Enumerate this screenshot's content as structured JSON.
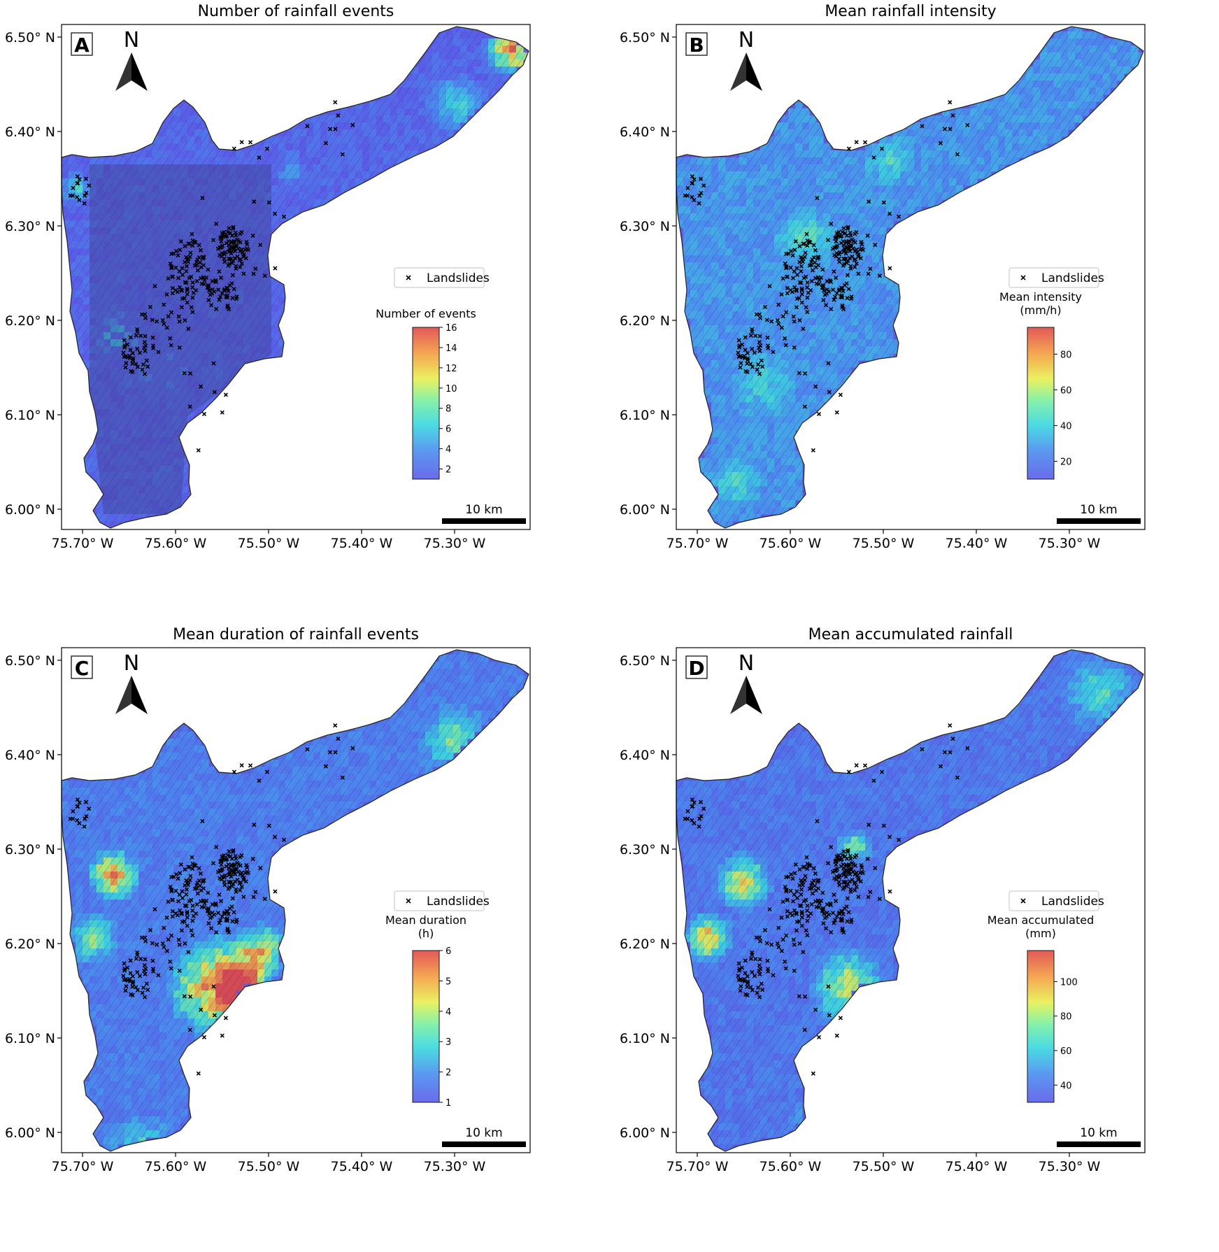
{
  "colors": {
    "basin_fill": "#5b5fdc",
    "hillshade": "#3a3a7a",
    "outline": "#222222",
    "landslide_marker": "#000000"
  },
  "colormap": [
    "#5a5ce8",
    "#4a8cf0",
    "#38d8e0",
    "#7cf0a0",
    "#e8f050",
    "#f4a040",
    "#e04848"
  ],
  "axes": {
    "lat_ticks": [
      "6.50° N",
      "6.40° N",
      "6.30° N",
      "6.20° N",
      "6.10° N",
      "6.00° N"
    ],
    "lon_ticks": [
      "75.70° W",
      "75.60° W",
      "75.50° W",
      "75.40° W",
      "75.30° W"
    ]
  },
  "north_label": "N",
  "legend_label": "Landslides",
  "scale_bar_label": "10 km",
  "panels": [
    {
      "letter": "A",
      "title": "Number of rainfall events",
      "colorbar_title": [
        "Number of events"
      ],
      "colorbar_min": 1,
      "colorbar_max": 16,
      "colorbar_ticks": [
        {
          "value": 2,
          "label": "2"
        },
        {
          "value": 4,
          "label": "4"
        },
        {
          "value": 6,
          "label": "6"
        },
        {
          "value": 8,
          "label": "8"
        },
        {
          "value": 10,
          "label": "10"
        },
        {
          "value": 12,
          "label": "12"
        },
        {
          "value": 14,
          "label": "14"
        },
        {
          "value": 16,
          "label": "16"
        }
      ]
    },
    {
      "letter": "B",
      "title": "Mean rainfall intensity",
      "colorbar_title": [
        "Mean intensity",
        "(mm/h)"
      ],
      "colorbar_min": 10,
      "colorbar_max": 95,
      "colorbar_ticks": [
        {
          "value": 20,
          "label": "20"
        },
        {
          "value": 40,
          "label": "40"
        },
        {
          "value": 60,
          "label": "60"
        },
        {
          "value": 80,
          "label": "80"
        }
      ]
    },
    {
      "letter": "C",
      "title": "Mean duration of rainfall events",
      "colorbar_title": [
        "Mean duration",
        "(h)"
      ],
      "colorbar_min": 1,
      "colorbar_max": 6,
      "colorbar_ticks": [
        {
          "value": 1,
          "label": "1"
        },
        {
          "value": 2,
          "label": "2"
        },
        {
          "value": 3,
          "label": "3"
        },
        {
          "value": 4,
          "label": "4"
        },
        {
          "value": 5,
          "label": "5"
        },
        {
          "value": 6,
          "label": "6"
        }
      ]
    },
    {
      "letter": "D",
      "title": "Mean accumulated rainfall",
      "colorbar_title": [
        "Mean accumulated",
        "(mm)"
      ],
      "colorbar_min": 30,
      "colorbar_max": 118,
      "colorbar_ticks": [
        {
          "value": 40,
          "label": "40"
        },
        {
          "value": 60,
          "label": "60"
        },
        {
          "value": 80,
          "label": "80"
        },
        {
          "value": 100,
          "label": "100"
        }
      ]
    }
  ]
}
